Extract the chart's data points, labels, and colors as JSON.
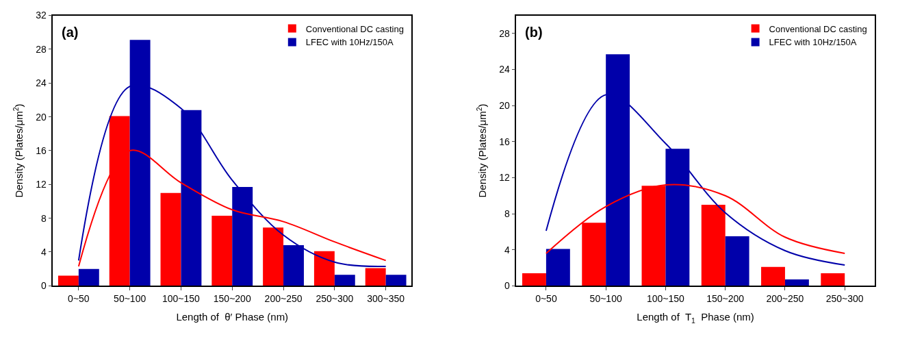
{
  "chart_data": [
    {
      "type": "bar",
      "categories": [
        "0~50",
        "50~100",
        "100~150",
        "150~200",
        "200~250",
        "250~300",
        "300~350"
      ],
      "xlabel": "Length of  θ′ Phase (nm)",
      "ylabel": "Density (Plates/μm$^{2}$)",
      "annotations": [
        "(a)"
      ],
      "ylim": [
        0,
        32
      ],
      "yticks": [
        0,
        4,
        8,
        12,
        16,
        20,
        24,
        28,
        32
      ],
      "legend": "top right",
      "series": [
        {
          "name": "Conventional DC casting",
          "color": "#ff0000",
          "values": [
            1.2,
            20.1,
            11.0,
            8.3,
            6.9,
            4.1,
            2.1
          ]
        },
        {
          "name": "LFEC with 10Hz/150A",
          "color": "#0000aa",
          "values": [
            2.0,
            29.1,
            20.8,
            11.7,
            4.8,
            1.3,
            1.3
          ]
        },
        {
          "type": "line",
          "color": "#0000aa",
          "values": [
            3.0,
            23.6,
            21.0,
            12.5,
            6.0,
            2.8,
            2.3
          ]
        },
        {
          "type": "line",
          "color": "#ff0000",
          "values": [
            2.3,
            16.0,
            12.2,
            9.0,
            7.6,
            5.2,
            3.0
          ]
        }
      ]
    },
    {
      "type": "bar",
      "categories": [
        "0~50",
        "50~100",
        "100~150",
        "150~200",
        "200~250",
        "250~300"
      ],
      "xlabel": "Length of  T$_{1}$  Phase (nm)",
      "ylabel": "Density (Plates/μm$^{2}$)",
      "annotations": [
        "(b)"
      ],
      "ylim": [
        0,
        30
      ],
      "yticks": [
        0,
        4,
        8,
        12,
        16,
        20,
        24,
        28
      ],
      "legend": "top right",
      "series": [
        {
          "name": "Conventional DC casting",
          "color": "#ff0000",
          "values": [
            1.4,
            7.0,
            11.1,
            9.0,
            2.1,
            1.4
          ]
        },
        {
          "name": "LFEC with 10Hz/150A",
          "color": "#0000aa",
          "values": [
            4.1,
            25.7,
            15.2,
            5.5,
            0.7,
            null
          ]
        },
        {
          "type": "line",
          "color": "#0000aa",
          "values": [
            6.1,
            21.2,
            15.8,
            8.1,
            3.9,
            2.3
          ]
        },
        {
          "type": "line",
          "color": "#ff0000",
          "values": [
            3.6,
            8.8,
            11.2,
            10.0,
            5.4,
            3.6
          ]
        }
      ]
    }
  ]
}
